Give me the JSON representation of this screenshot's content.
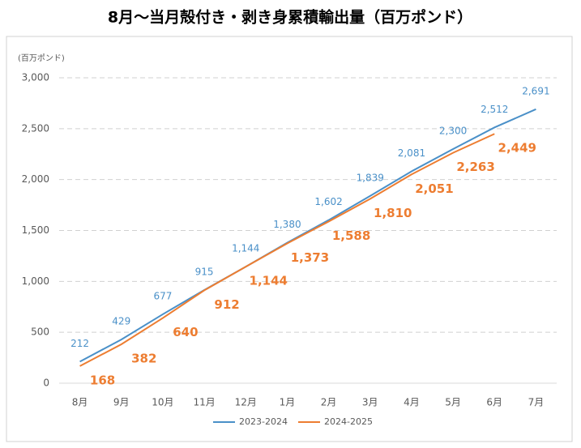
{
  "chart_data": {
    "type": "line",
    "title": "8月～当月殻付き・剥き身累積輸出量（百万ポンド）",
    "y_axis_label": "(百万ポンド)",
    "categories": [
      "8月",
      "9月",
      "10月",
      "11月",
      "12月",
      "1月",
      "2月",
      "3月",
      "4月",
      "5月",
      "6月",
      "7月"
    ],
    "series": [
      {
        "name": "2023-2024",
        "color": "#4a90c8",
        "values": [
          212,
          429,
          677,
          915,
          1144,
          1380,
          1602,
          1839,
          2081,
          2300,
          2512,
          2691
        ],
        "value_labels": [
          "212",
          "429",
          "677",
          "915",
          "1,144",
          "1,380",
          "1,602",
          "1,839",
          "2,081",
          "2,300",
          "2,512",
          "2,691"
        ]
      },
      {
        "name": "2024-2025",
        "color": "#ed7d31",
        "values": [
          168,
          382,
          640,
          912,
          1144,
          1373,
          1588,
          1810,
          2051,
          2263,
          2449,
          null
        ],
        "value_labels": [
          "168",
          "382",
          "640",
          "912",
          "1,144",
          "1,373",
          "1,588",
          "1,810",
          "2,051",
          "2,263",
          "2,449",
          null
        ]
      }
    ],
    "ylim": [
      0,
      3000
    ],
    "yticks": [
      0,
      500,
      {
        "value": 1000,
        "label": "1,000"
      },
      {
        "value": 1500,
        "label": "1,500"
      },
      {
        "value": 2000,
        "label": "2,000"
      },
      {
        "value": 2500,
        "label": "2,500"
      },
      {
        "value": 3000,
        "label": "3,000"
      }
    ],
    "grid": true,
    "legend": "bottom"
  }
}
